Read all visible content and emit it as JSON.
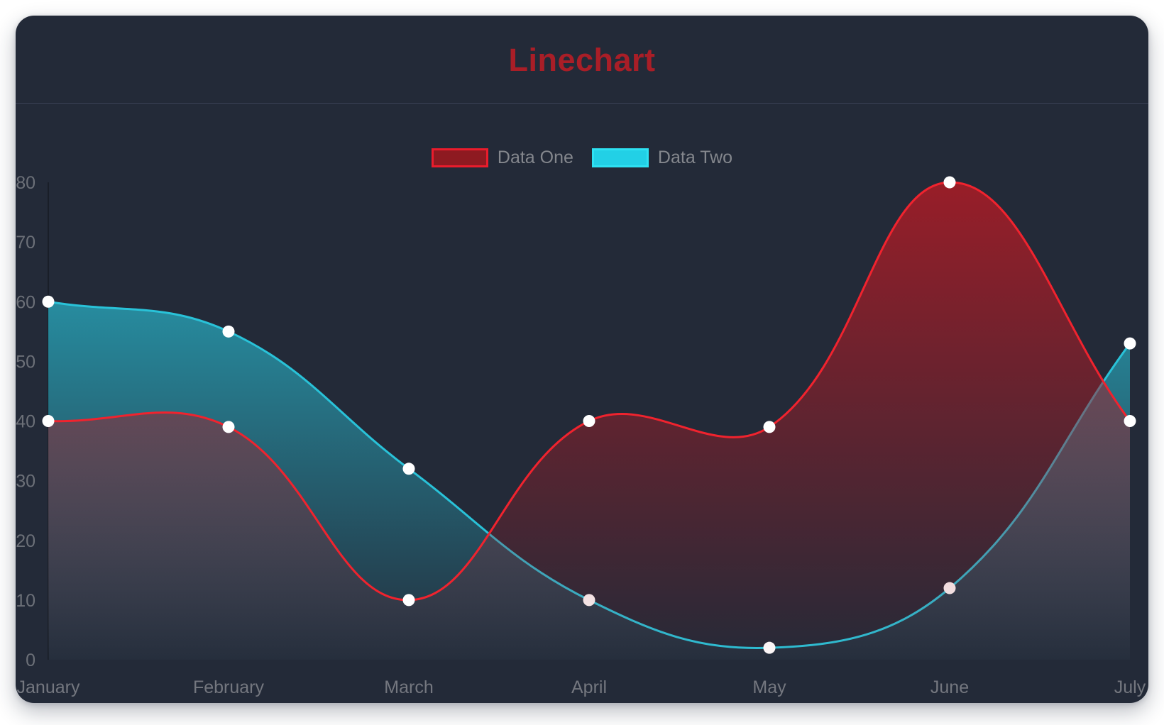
{
  "page": {
    "background": "#ffffff"
  },
  "card": {
    "background": "#232a38",
    "divider_color": "#3a4156"
  },
  "title": {
    "text": "Linechart",
    "color": "#a91e27"
  },
  "legend": {
    "items": [
      {
        "label": "Data One",
        "box_fill": "#8e1a21",
        "box_border": "#ea1c2c"
      },
      {
        "label": "Data Two",
        "box_fill": "#22d0e6",
        "box_border": "#2ee1f2"
      }
    ],
    "label_color": "#84878d"
  },
  "axes": {
    "y_ticks": [
      "0",
      "10",
      "20",
      "30",
      "40",
      "50",
      "60",
      "70",
      "80"
    ],
    "tick_color": "#6c7078",
    "month_label_color": "#74777f",
    "axis_line_color": "rgba(0,0,0,0.28)"
  },
  "chart_data": {
    "type": "line",
    "categories": [
      "January",
      "February",
      "March",
      "April",
      "May",
      "June",
      "July"
    ],
    "series": [
      {
        "name": "Data One",
        "line_color": "#f0232e",
        "fill_color": "#a81c26",
        "values": [
          40,
          39,
          10,
          40,
          39,
          80,
          40
        ]
      },
      {
        "name": "Data Two",
        "line_color": "#29c2d8",
        "fill_color": "#29c2d8",
        "values": [
          60,
          55,
          32,
          10,
          2,
          12,
          53
        ]
      }
    ],
    "title": "Linechart",
    "xlabel": "",
    "ylabel": "",
    "ylim": [
      0,
      80
    ],
    "y_tick_step": 10,
    "grid": false,
    "legend_position": "top",
    "point_color": "#ffffff",
    "smooth": true,
    "tension": 0.4,
    "draw_order_note": "Data Two drawn first; Data One area overlays it"
  }
}
